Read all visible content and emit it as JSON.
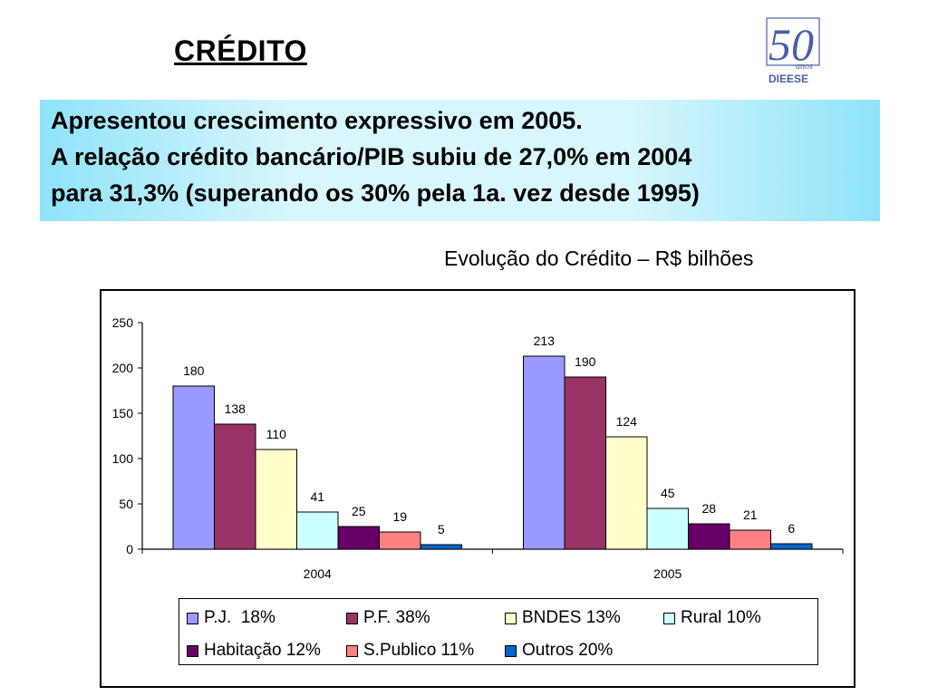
{
  "slide": {
    "title": "CRÉDITO",
    "logo_text_50": "50",
    "logo_text_anos": "anos",
    "logo_text_brand": "DIEESE",
    "highlight_lines": [
      "Apresentou crescimento expressivo em 2005.",
      "A relação crédito bancário/PIB subiu de 27,0% em 2004",
      "para 31,3% (superando os 30% pela 1a. vez desde 1995)"
    ]
  },
  "colors": {
    "logo_blue": "#4a5fa8",
    "logo_red": "#c0272d",
    "box_edge": "#8fe3f9",
    "box_center": "#d8f6fd"
  },
  "chart_data": {
    "type": "bar",
    "title": "Evolução do Crédito – R$ bilhões",
    "categories": [
      "2004",
      "2005"
    ],
    "ylim": [
      0,
      250
    ],
    "yticks": [
      0,
      50,
      100,
      150,
      200,
      250
    ],
    "grid": false,
    "legend_position": "bottom",
    "series": [
      {
        "name": "P.J.  18%",
        "values": [
          180,
          213
        ],
        "color": "#9999ff"
      },
      {
        "name": "P.F. 38%",
        "values": [
          138,
          190
        ],
        "color": "#993366"
      },
      {
        "name": "BNDES 13%",
        "values": [
          110,
          124
        ],
        "color": "#ffffcc"
      },
      {
        "name": "Rural 10%",
        "values": [
          41,
          45
        ],
        "color": "#ccffff"
      },
      {
        "name": "Habitação 12%",
        "values": [
          25,
          28
        ],
        "color": "#660066"
      },
      {
        "name": "S.Publico 11%",
        "values": [
          19,
          21
        ],
        "color": "#ff8080"
      },
      {
        "name": "Outros 20%",
        "values": [
          5,
          6
        ],
        "color": "#0066cc"
      }
    ]
  }
}
